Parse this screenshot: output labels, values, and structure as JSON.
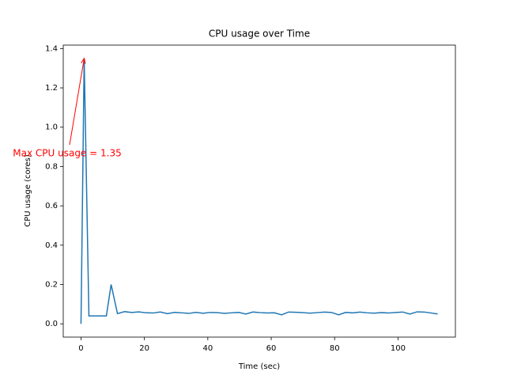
{
  "chart_data": {
    "type": "line",
    "title": "CPU usage over Time",
    "x_label": "Time (sec)",
    "y_label": "CPU usage (cores)",
    "annotation": "Max CPU usage = 1.35",
    "annotation_color": "#ff0000",
    "x": [
      0,
      1,
      2.5,
      5,
      8,
      9.5,
      11.5,
      13.75,
      16,
      18.25,
      20.5,
      22.75,
      25,
      27.25,
      29.5,
      31.75,
      34,
      36.25,
      38.5,
      40.75,
      43,
      45.25,
      47.5,
      49.75,
      52,
      54.25,
      56.5,
      58.75,
      61,
      63.25,
      65.5,
      67.75,
      70,
      72.25,
      74.5,
      76.75,
      79,
      81.25,
      83.5,
      85.75,
      88,
      90.25,
      92.5,
      94.75,
      97,
      99.25,
      101.5,
      103.75,
      106,
      108.25,
      110.5,
      112.5
    ],
    "series": [
      {
        "name": "CPU usage",
        "color": "#1f77b4",
        "values": [
          0,
          1.35,
          0.04,
          0.04,
          0.04,
          0.2,
          0.052,
          0.062,
          0.058,
          0.061,
          0.056,
          0.055,
          0.06,
          0.052,
          0.058,
          0.056,
          0.053,
          0.058,
          0.054,
          0.058,
          0.057,
          0.053,
          0.056,
          0.058,
          0.05,
          0.06,
          0.057,
          0.055,
          0.056,
          0.046,
          0.06,
          0.059,
          0.057,
          0.054,
          0.057,
          0.06,
          0.058,
          0.046,
          0.058,
          0.056,
          0.06,
          0.056,
          0.054,
          0.057,
          0.055,
          0.058,
          0.06,
          0.05,
          0.061,
          0.06,
          0.055,
          0.05
        ]
      }
    ],
    "xlim": [
      -5.6,
      118.1
    ],
    "ylim": [
      -0.0675,
      1.4175
    ],
    "xticks": [
      0,
      20,
      40,
      60,
      80,
      100
    ],
    "yticks": [
      {
        "value": 0,
        "label": "0.0"
      },
      0.2,
      0.4,
      0.6,
      0.8,
      {
        "value": 1,
        "label": "1.0"
      },
      1.2,
      1.4
    ]
  }
}
